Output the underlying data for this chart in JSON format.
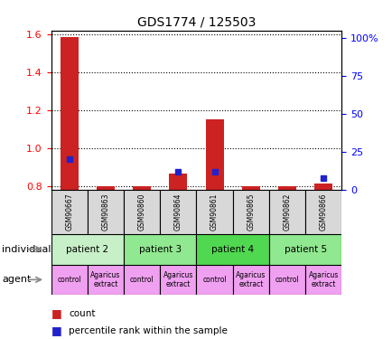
{
  "title": "GDS1774 / 125503",
  "samples": [
    "GSM90667",
    "GSM90863",
    "GSM90860",
    "GSM90864",
    "GSM90861",
    "GSM90865",
    "GSM90862",
    "GSM90866"
  ],
  "count_values": [
    1.585,
    0.8,
    0.8,
    0.865,
    1.15,
    0.8,
    0.8,
    0.815
  ],
  "percentile_values": [
    20,
    0,
    0,
    12,
    12,
    0,
    0,
    8
  ],
  "ylim_left": [
    0.78,
    1.62
  ],
  "ylim_right": [
    0,
    105
  ],
  "yticks_left": [
    0.8,
    1.0,
    1.2,
    1.4,
    1.6
  ],
  "yticks_right": [
    0,
    25,
    50,
    75,
    100
  ],
  "ytick_labels_right": [
    "0",
    "25",
    "50",
    "75",
    "100%"
  ],
  "patients": [
    {
      "label": "patient 2",
      "cols": [
        0,
        1
      ],
      "color": "#c8f0c8"
    },
    {
      "label": "patient 3",
      "cols": [
        2,
        3
      ],
      "color": "#90e890"
    },
    {
      "label": "patient 4",
      "cols": [
        4,
        5
      ],
      "color": "#50d850"
    },
    {
      "label": "patient 5",
      "cols": [
        6,
        7
      ],
      "color": "#90e890"
    }
  ],
  "agents": [
    {
      "label": "control",
      "col": 0,
      "color": "#f0a0f0"
    },
    {
      "label": "Agaricus\nextract",
      "col": 1,
      "color": "#f0a0f0"
    },
    {
      "label": "control",
      "col": 2,
      "color": "#f0a0f0"
    },
    {
      "label": "Agaricus\nextract",
      "col": 3,
      "color": "#f0a0f0"
    },
    {
      "label": "control",
      "col": 4,
      "color": "#f0a0f0"
    },
    {
      "label": "Agaricus\nextract",
      "col": 5,
      "color": "#f0a0f0"
    },
    {
      "label": "control",
      "col": 6,
      "color": "#f0a0f0"
    },
    {
      "label": "Agaricus\nextract",
      "col": 7,
      "color": "#f0a0f0"
    }
  ],
  "bar_color": "#cc2222",
  "dot_color": "#2222cc",
  "bar_width": 0.5,
  "bg_color": "#ffffff",
  "sample_bg_color": "#d8d8d8",
  "row_label_individual": "individual",
  "row_label_agent": "agent",
  "arrow_color": "#888888",
  "legend_count": "count",
  "legend_pct": "percentile rank within the sample"
}
